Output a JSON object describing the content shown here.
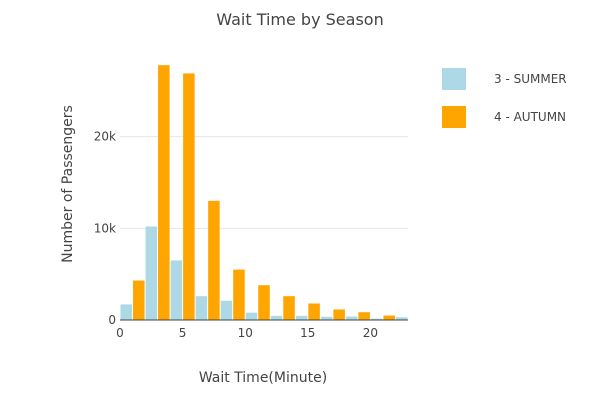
{
  "chart_data": {
    "type": "bar",
    "title": "Wait Time by Season",
    "xlabel": "Wait Time(Minute)",
    "ylabel": "Number of Passengers",
    "x_range": [
      0,
      23
    ],
    "ylim": [
      0,
      30000
    ],
    "bin_width": 2,
    "x_ticks": [
      0,
      5,
      10,
      15,
      20
    ],
    "x_tick_labels": [
      "0",
      "5",
      "10",
      "15",
      "20"
    ],
    "y_ticks": [
      0,
      10000,
      20000
    ],
    "y_tick_labels": [
      "0",
      "10k",
      "20k"
    ],
    "grid": true,
    "legend_position": "top-right",
    "bins": [
      1,
      3,
      5,
      7,
      9,
      11,
      13,
      15,
      17,
      19,
      21,
      23
    ],
    "series": [
      {
        "name": "3 - SUMMER",
        "color": "#add8e6",
        "values": [
          1700,
          10200,
          6500,
          2600,
          2100,
          800,
          450,
          450,
          350,
          380,
          150,
          300
        ]
      },
      {
        "name": "4 - AUTUMN",
        "color": "#ffa500",
        "values": [
          4300,
          27800,
          26900,
          13000,
          5500,
          3800,
          2600,
          1800,
          1150,
          850,
          480,
          500
        ]
      }
    ]
  }
}
